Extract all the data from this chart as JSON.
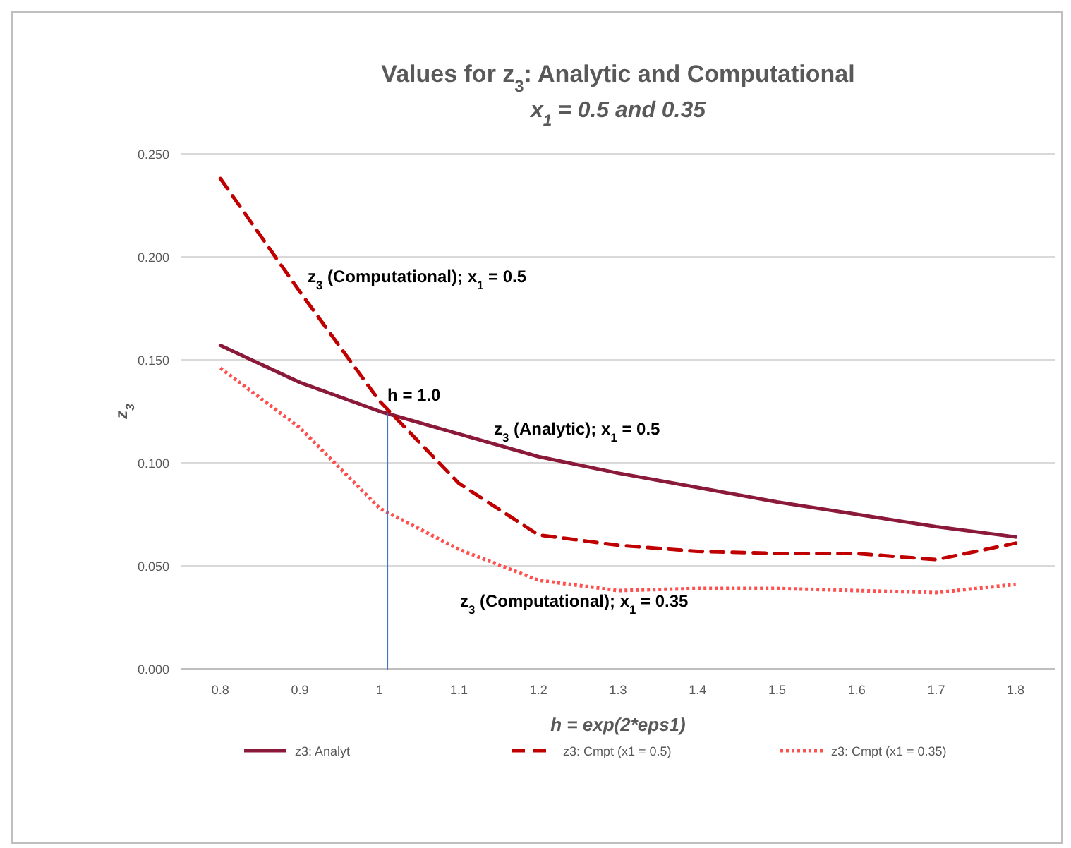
{
  "chart_data": {
    "type": "line",
    "title": "Values for z$_{3}$: Analytic and Computational",
    "subtitle": "x$_{1}$ = 0.5 and 0.35",
    "xlabel": "h = exp(2*eps1)",
    "ylabel": "z$_{3}$",
    "x": [
      0.8,
      0.9,
      1.0,
      1.1,
      1.2,
      1.3,
      1.4,
      1.5,
      1.6,
      1.7,
      1.8
    ],
    "xlim": [
      0.75,
      1.85
    ],
    "xticks": [
      0.8,
      0.9,
      1,
      1.1,
      1.2,
      1.3,
      1.4,
      1.5,
      1.6,
      1.7,
      1.8
    ],
    "ylim": [
      0,
      0.25
    ],
    "yticks": [
      {
        "value": 0,
        "label": "0.000"
      },
      {
        "value": 0.05,
        "label": "0.050"
      },
      {
        "value": 0.1,
        "label": "0.100"
      },
      {
        "value": 0.15,
        "label": "0.150"
      },
      {
        "value": 0.2,
        "label": "0.200"
      },
      {
        "value": 0.25,
        "label": "0.250"
      }
    ],
    "grid": "y",
    "legend": "bottom",
    "series": [
      {
        "name": "z3: Analyt",
        "color": "#8b1a3a",
        "line_style": "solid",
        "values": [
          0.157,
          0.139,
          0.125,
          0.114,
          0.103,
          0.095,
          0.088,
          0.081,
          0.075,
          0.069,
          0.064
        ]
      },
      {
        "name": "z3: Cmpt (x1 = 0.5)",
        "color": "#c00000",
        "line_style": "dashed",
        "values": [
          0.238,
          0.183,
          0.13,
          0.09,
          0.065,
          0.06,
          0.057,
          0.056,
          0.056,
          0.053,
          0.061
        ]
      },
      {
        "name": "z3: Cmpt (x1 = 0.35)",
        "color": "#ff5050",
        "line_style": "dotted",
        "values": [
          0.146,
          0.117,
          0.078,
          0.058,
          0.043,
          0.038,
          0.039,
          0.039,
          0.038,
          0.037,
          0.041
        ]
      },
      {
        "color": "#4472c4",
        "line_style": "solid",
        "x": [
          1.01,
          1.01
        ],
        "values": [
          0,
          0.124
        ]
      }
    ],
    "annotations": [
      "z$_{3}$ (Computational); x$_{1}$ = 0.5",
      {
        "text": "h = 1.0",
        "x": 1.01,
        "y": 0.13
      },
      "z$_{3}$ (Analytic); x$_{1}$ = 0.5",
      "z$_{3}$ (Computational); x$_{1}$ = 0.35"
    ]
  }
}
